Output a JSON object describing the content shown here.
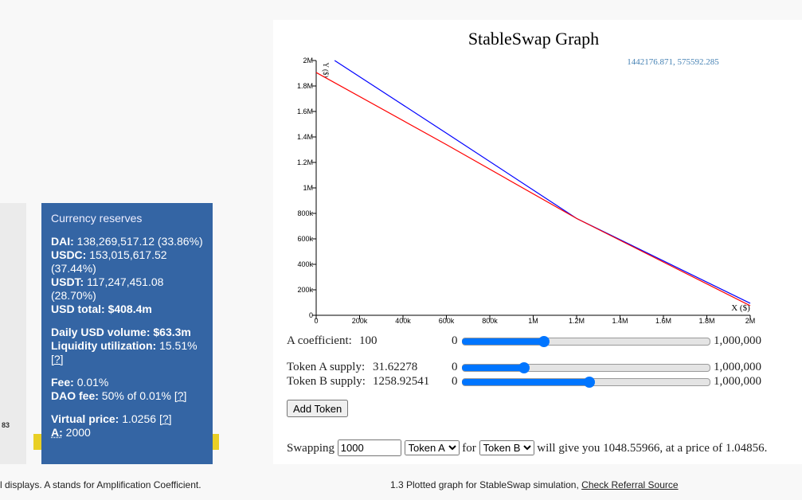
{
  "left_panel": {
    "cut_off_value": "83"
  },
  "reserves": {
    "title": "Currency reserves",
    "groups": [
      [
        {
          "label": "DAI:",
          "value": "138,269,517.12 (33.86%)"
        },
        {
          "label": "USDC:",
          "value": "153,015,617.52 (37.44%)"
        },
        {
          "label": "USDT:",
          "value": "117,247,451.08 (28.70%)"
        },
        {
          "label": "USD total:",
          "value": "$408.4m",
          "strong": true
        }
      ],
      [
        {
          "label": "Daily USD volume:",
          "value": "$63.3m",
          "strong": true
        },
        {
          "label": "Liquidity utilization:",
          "value": "15.51%",
          "link": "[?]"
        }
      ],
      [
        {
          "label": "Fee:",
          "value": "0.01%"
        },
        {
          "label": "DAO fee:",
          "value": "50% of 0.01%",
          "link": "[?]"
        }
      ],
      [
        {
          "label": "Virtual price:",
          "value": "1.0256",
          "link": "[?]"
        },
        {
          "label": "A:",
          "value": "2000",
          "highlight": true
        }
      ]
    ]
  },
  "graph": {
    "title": "StableSwap Graph",
    "readout": "1442176.871, 575592.285",
    "x_label": "X ($)",
    "y_label": "Y ($)",
    "xlim": [
      0,
      2000000
    ],
    "ylim": [
      0,
      2000000
    ],
    "xticks": [
      0,
      {
        "value": 200000,
        "label": "200k"
      },
      {
        "value": 400000,
        "label": "400k"
      },
      {
        "value": 600000,
        "label": "600k"
      },
      {
        "value": 800000,
        "label": "800k"
      },
      {
        "value": 1000000,
        "label": "1M"
      },
      {
        "value": 1200000,
        "label": "1.2M"
      },
      {
        "value": 1400000,
        "label": "1.4M"
      },
      {
        "value": 1600000,
        "label": "1.6M"
      },
      {
        "value": 1800000,
        "label": "1.8M"
      },
      {
        "value": 2000000,
        "label": "2M"
      }
    ],
    "yticks": [
      0,
      {
        "value": 200000,
        "label": "200k"
      },
      {
        "value": 400000,
        "label": "400k"
      },
      {
        "value": 600000,
        "label": "600k"
      },
      {
        "value": 800000,
        "label": "800k"
      },
      {
        "value": 1000000,
        "label": "1M"
      },
      {
        "value": 1200000,
        "label": "1.2M"
      },
      {
        "value": 1400000,
        "label": "1.4M"
      },
      {
        "value": 1600000,
        "label": "1.6M"
      },
      {
        "value": 1800000,
        "label": "1.8M"
      },
      {
        "value": 2000000,
        "label": "2M"
      }
    ],
    "series": [
      {
        "color": "#0000ff",
        "x": [
          85000,
          600000,
          1200000,
          2000000
        ],
        "values": [
          2000000,
          1430000,
          760000,
          94000
        ]
      },
      {
        "color": "#ff0000",
        "x": [
          0,
          600000,
          1200000,
          2000000
        ],
        "values": [
          1906000,
          1340000,
          760000,
          75000
        ]
      }
    ]
  },
  "controls": {
    "sliders": [
      {
        "label": "A coefficient:",
        "display": "100",
        "value": 100,
        "min": {
          "value": 0,
          "label": "0"
        },
        "max": {
          "value": 1000000,
          "label": "1,000,000"
        }
      },
      {
        "label": "Token A supply:",
        "display": "31.62278",
        "value": 31.62278,
        "min": {
          "value": 0,
          "label": "0"
        },
        "max": {
          "value": 1000000,
          "label": "1,000,000"
        }
      },
      {
        "label": "Token B supply:",
        "display": "1258.92541",
        "value": 1258.92541,
        "min": {
          "value": 0,
          "label": "0"
        },
        "max": {
          "value": 1000000,
          "label": "1,000,000"
        }
      }
    ],
    "add_token": "Add Token",
    "swap": {
      "prefix": "Swapping",
      "amount": "1000",
      "from": "Token A",
      "connector": "for",
      "to": "Token B",
      "result": "will give you 1048.55966, at a price of 1.04856."
    }
  },
  "captions": {
    "left": "l displays. A stands for Amplification Coefficient.",
    "right": "1.3 Plotted graph for StableSwap simulation,",
    "right_link": "Check Referral Source"
  }
}
